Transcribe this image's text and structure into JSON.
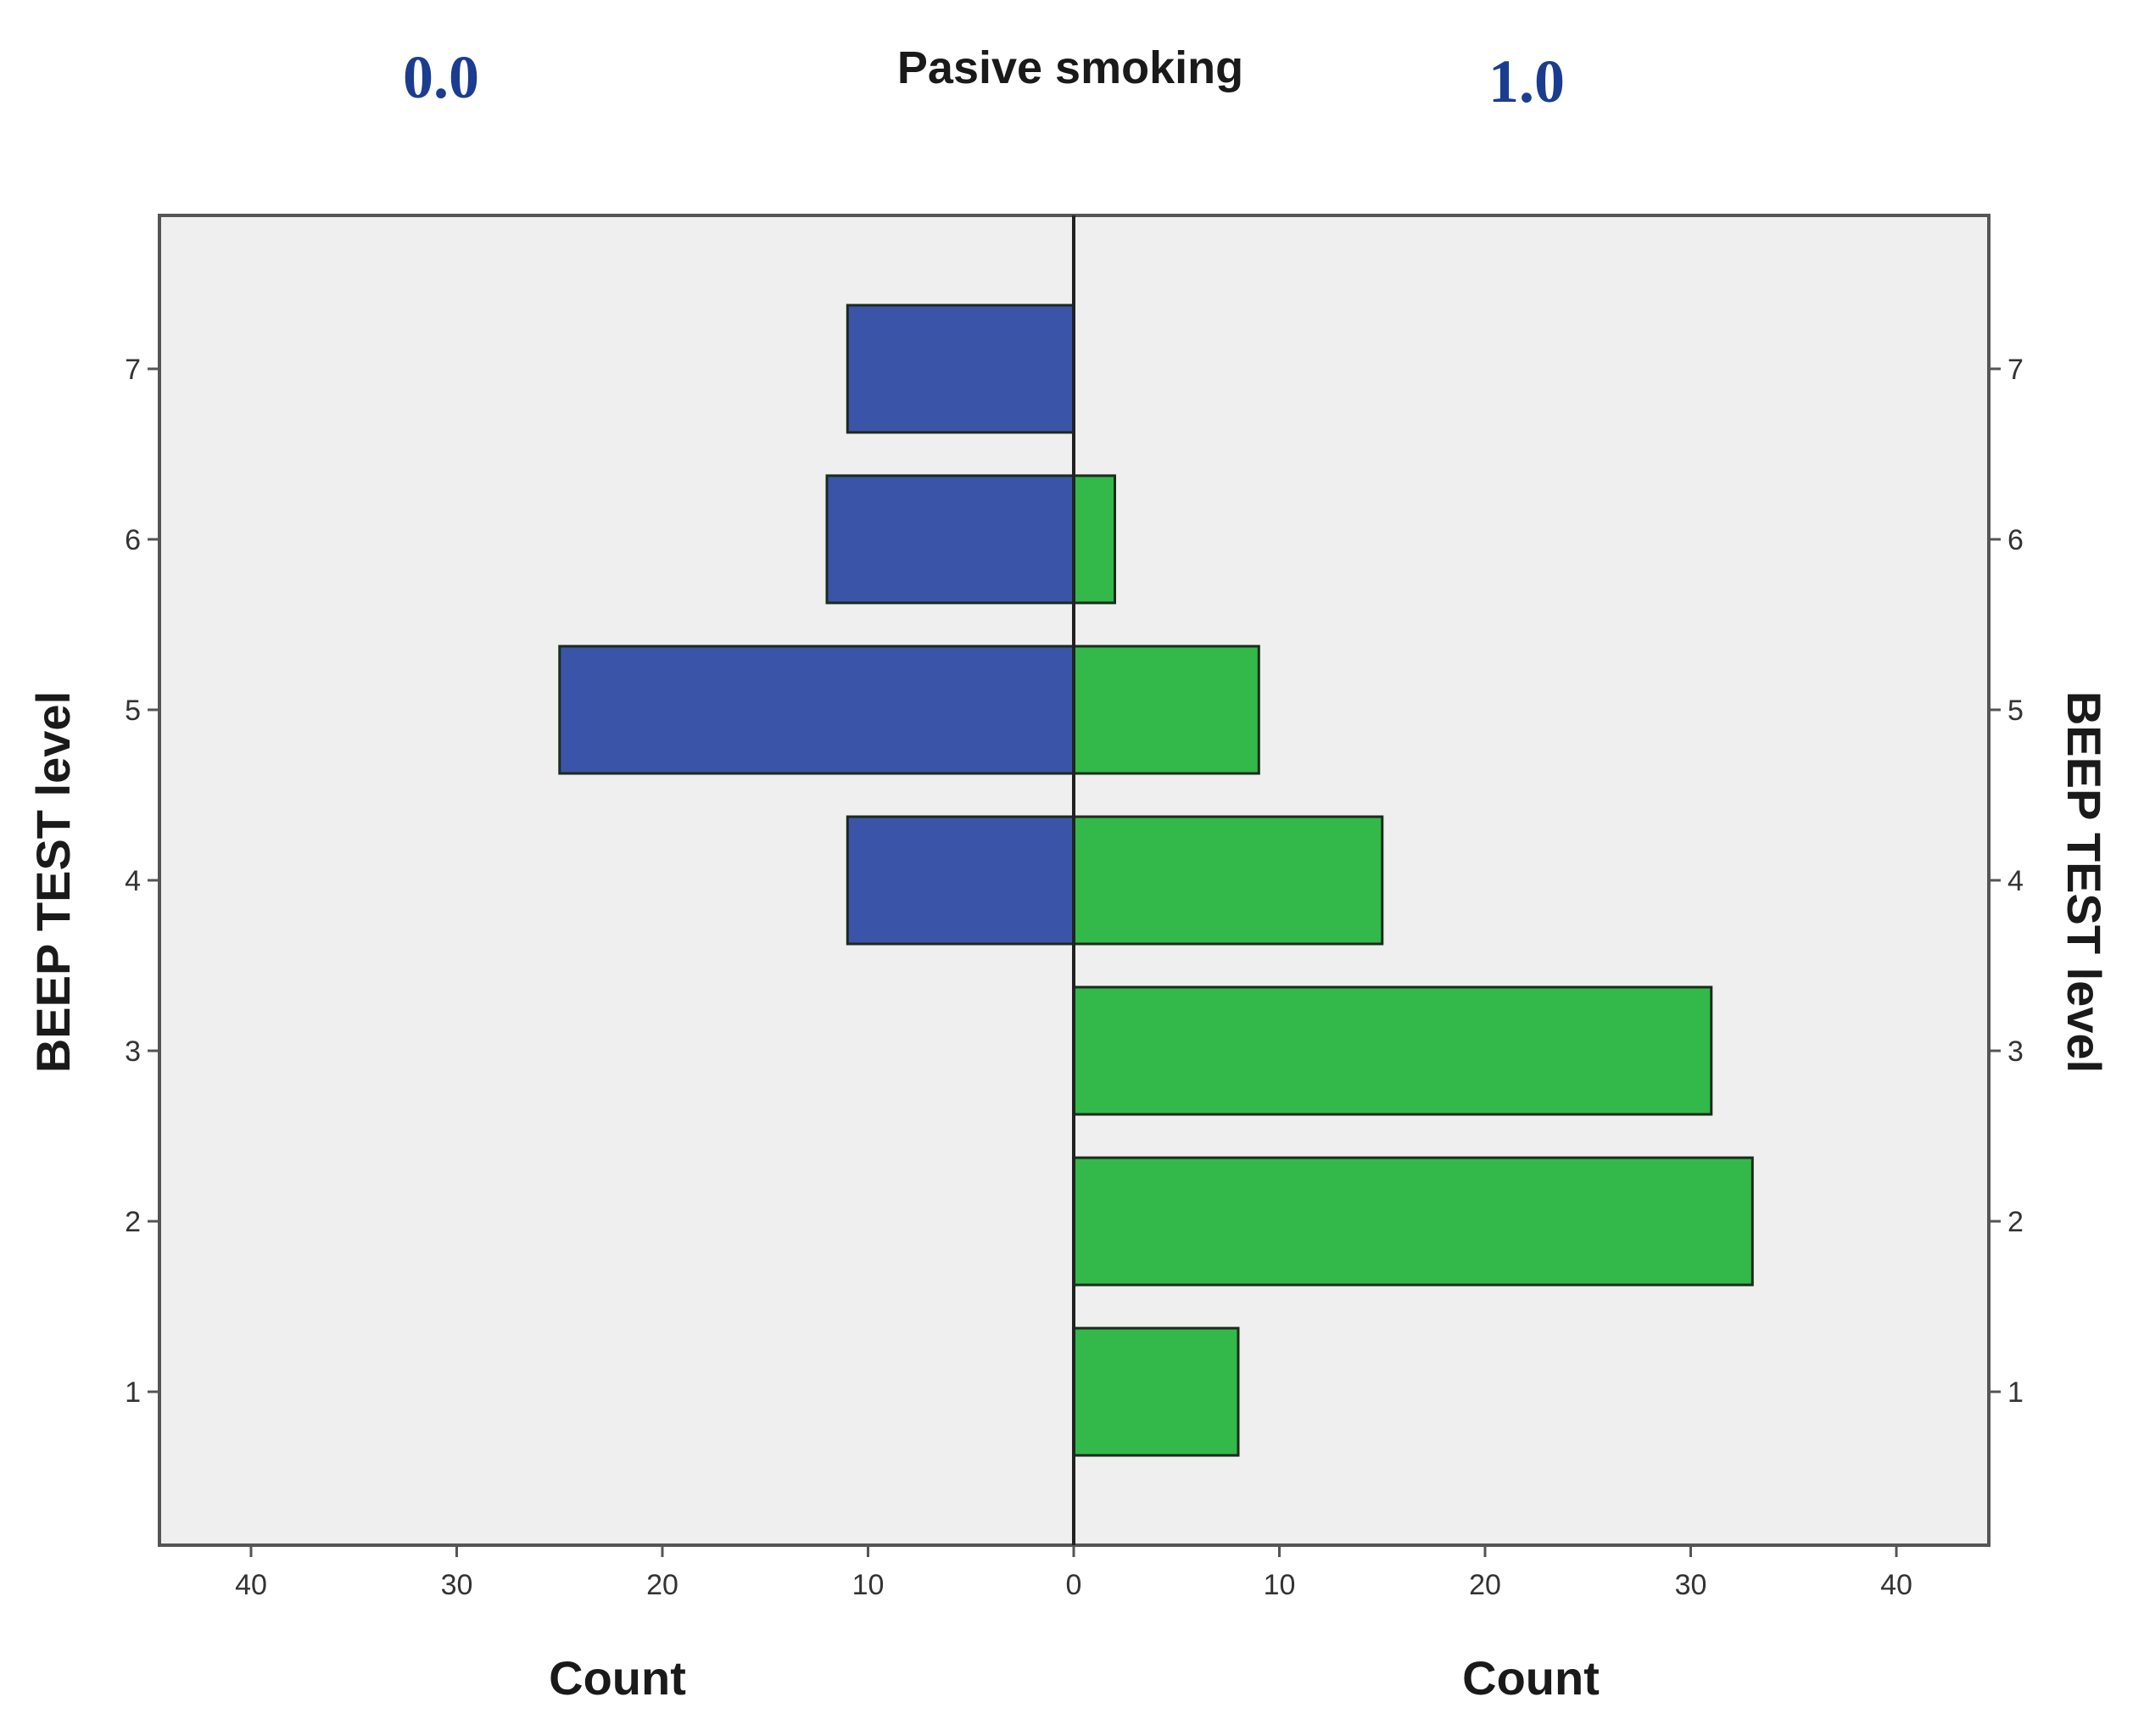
{
  "chart_data": {
    "type": "bar",
    "orientation": "horizontal",
    "layout": "population-pyramid",
    "title": "Pasive smoking",
    "panel_labels": [
      "0.0",
      "1.0"
    ],
    "categories": [
      "1",
      "2",
      "3",
      "4",
      "5",
      "6",
      "7"
    ],
    "series": [
      {
        "name": "0.0",
        "side": "left",
        "color": "#3a55a8",
        "values": [
          0,
          0,
          0,
          11,
          25,
          12,
          11
        ]
      },
      {
        "name": "1.0",
        "side": "right",
        "color": "#33b84a",
        "values": [
          8,
          33,
          31,
          15,
          9,
          2,
          0
        ]
      }
    ],
    "xlabel_left": "Count",
    "xlabel_right": "Count",
    "ylabel_left": "BEEP TEST level",
    "ylabel_right": "BEEP TEST level",
    "x_ticks": [
      40,
      30,
      20,
      10,
      0,
      10,
      20,
      30,
      40
    ],
    "y_ticks": [
      "1",
      "2",
      "3",
      "4",
      "5",
      "6",
      "7"
    ],
    "xlim": [
      0,
      44
    ],
    "ylim": [
      0.1,
      7.9
    ],
    "plot_background": "#efefef",
    "panel_label_color": "#1a3d8f",
    "grid": false,
    "legend": "none"
  }
}
